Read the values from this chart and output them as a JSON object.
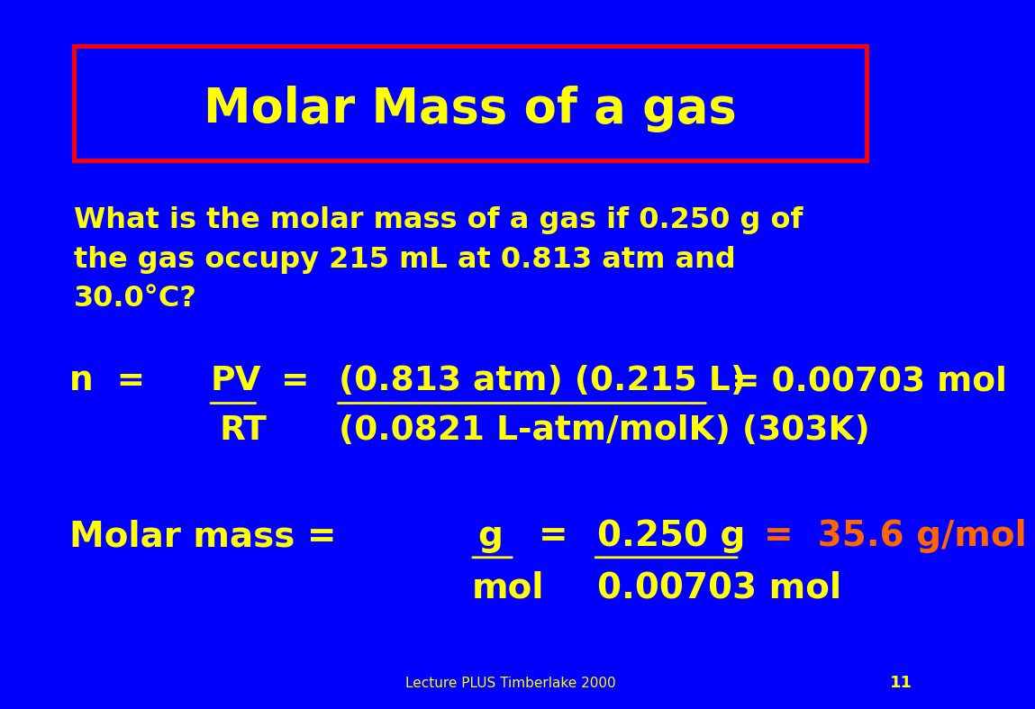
{
  "background_color": "#0000FF",
  "title_text": "Molar Mass of a gas",
  "title_box_edge_color": "#FF0000",
  "yellow": "#FFFF00",
  "orange": "#FF6600",
  "footer_text": "Lecture PLUS Timberlake 2000",
  "page_number": "11",
  "question_line1": "What is the molar mass of a gas if 0.250 g of",
  "question_line2": "the gas occupy 215 mL at 0.813 atm and",
  "question_line3": "30.0°C?",
  "eq_n_prefix": "n  =  ",
  "eq_PV": "PV",
  "eq_mid": "  =  ",
  "eq_numerator": "(0.813 atm) (0.215 L)",
  "eq_equals_result": "  = 0.00703 mol",
  "eq_RT": "RT",
  "eq_denominator": "(0.0821 L-atm/molK) (303K)",
  "mm_prefix": "Molar mass =  ",
  "mm_g_top": "g",
  "mm_eq": "  =  ",
  "mm_num": "0.250 g",
  "mm_result": "  =  35.6 g/mol",
  "mm_mol_bottom": "mol",
  "mm_denom": "0.00703 mol"
}
